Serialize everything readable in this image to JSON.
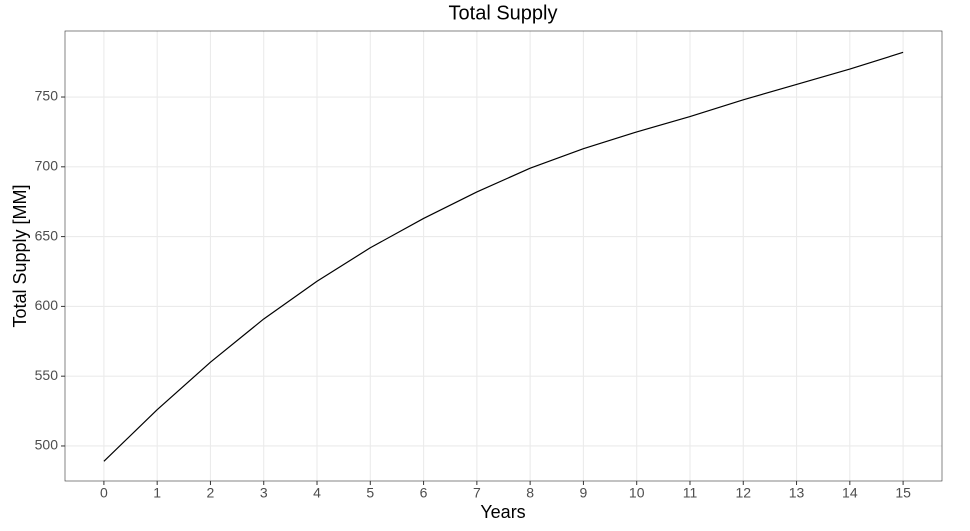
{
  "chart_data": {
    "type": "line",
    "title": "Total Supply",
    "x_label": "Years",
    "y_label": "Total Supply [MM]",
    "x": [
      0,
      1,
      2,
      3,
      4,
      5,
      6,
      7,
      8,
      9,
      10,
      11,
      12,
      13,
      14,
      15
    ],
    "series": [
      {
        "name": "Total Supply",
        "color": "#000000",
        "values": [
          489,
          526,
          560,
          591,
          618,
          642,
          663,
          682,
          699,
          713,
          725,
          736,
          748,
          759,
          770,
          782
        ]
      }
    ],
    "xlim": [
      -0.73,
      15.73
    ],
    "xticks": [
      0,
      1,
      2,
      3,
      4,
      5,
      6,
      7,
      8,
      9,
      10,
      11,
      12,
      13,
      14,
      15
    ],
    "ylim": [
      474.9,
      797.3
    ],
    "yticks": [
      500,
      550,
      600,
      650,
      700,
      750
    ],
    "grid": true
  }
}
